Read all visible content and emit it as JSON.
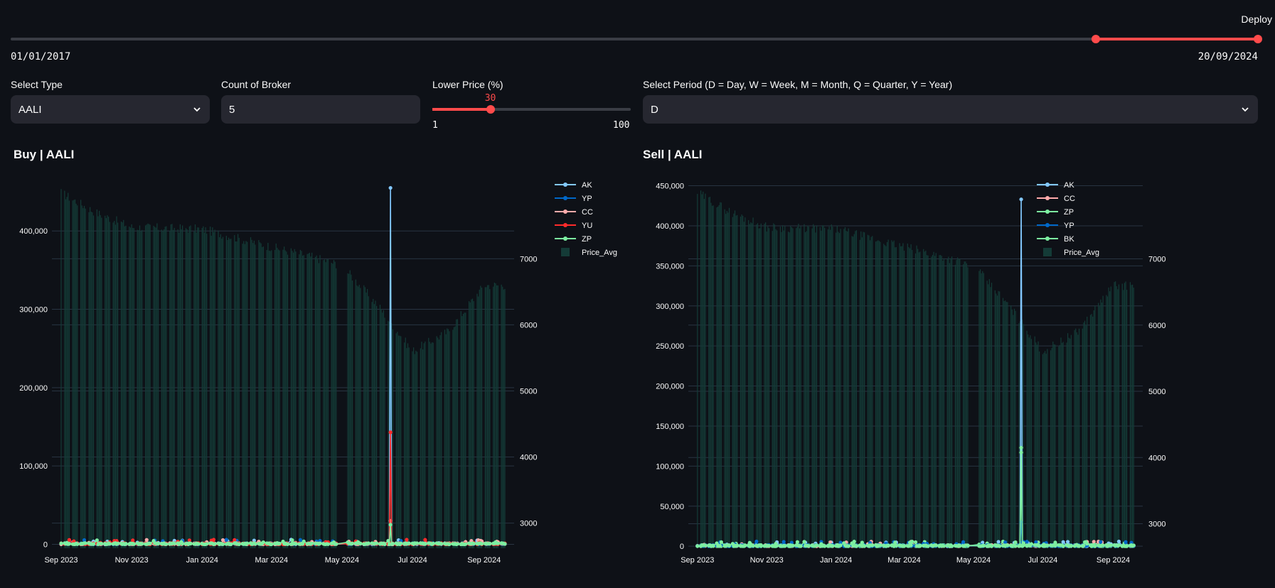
{
  "header": {
    "deploy_label": "Deploy"
  },
  "date_range": {
    "start": "01/01/2017",
    "end": "20/09/2024",
    "low_fraction": 0.87,
    "high_fraction": 1.0
  },
  "controls": {
    "type_label": "Select Type",
    "type_value": "AALI",
    "broker_label": "Count of Broker",
    "broker_value": "5",
    "lower_price_label": "Lower Price (%)",
    "lower_price_value": "30",
    "lower_price_min": "1",
    "lower_price_max": "100",
    "period_label": "Select Period (D = Day, W = Week, M = Month, Q = Quarter, Y = Year)",
    "period_value": "D"
  },
  "colors": {
    "accent": "#ff4b4b",
    "bar": "#143b37",
    "AK": "#83c9ff",
    "YP": "#0068c9",
    "CC": "#ffabab",
    "YU": "#ff2b2b",
    "ZP": "#7defa1",
    "BK": "#7defa1"
  },
  "chart_data": [
    {
      "type": "line",
      "title": "Buy | AALI",
      "x_ticks": [
        "Sep 2023",
        "Nov 2023",
        "Jan 2024",
        "Mar 2024",
        "May 2024",
        "Jul 2024",
        "Sep 2024"
      ],
      "y_ticks": [
        "0",
        "100,000",
        "200,000",
        "300,000",
        "400,000"
      ],
      "y2_ticks": [
        "3000",
        "4000",
        "5000",
        "6000",
        "7000"
      ],
      "ylim": [
        -5000,
        470000
      ],
      "y2lim": [
        2620,
        8250
      ],
      "legend": [
        "AK",
        "YP",
        "CC",
        "YU",
        "ZP",
        "Price_Avg"
      ],
      "legend_placement": "top-right",
      "series_spikes": [
        {
          "name": "AK",
          "date": "Jun 2024",
          "value": 455000
        },
        {
          "name": "YU",
          "date": "Jun 2024",
          "value": 143000
        },
        {
          "name": "CC",
          "date": "Jun 2024",
          "value": 30000
        },
        {
          "name": "ZP",
          "date": "Jun 2024",
          "value": 25000
        }
      ],
      "price_avg_trend": [
        {
          "date": "Sep 2023",
          "value": 8000
        },
        {
          "date": "Oct 2023",
          "value": 7700
        },
        {
          "date": "Nov 2023",
          "value": 7480
        },
        {
          "date": "Jan 2024",
          "value": 7450
        },
        {
          "date": "Mar 2024",
          "value": 7180
        },
        {
          "date": "Apr 2024",
          "value": 7050
        },
        {
          "date": "May 2024",
          "value": 6900
        },
        {
          "date": "Jun 2024",
          "value": 6300
        },
        {
          "date": "Jul 2024",
          "value": 5600
        },
        {
          "date": "Aug 2024",
          "value": 5900
        },
        {
          "date": "Sep 2024",
          "value": 6600
        }
      ]
    },
    {
      "type": "line",
      "title": "Sell | AALI",
      "x_ticks": [
        "Sep 2023",
        "Nov 2023",
        "Jan 2024",
        "Mar 2024",
        "May 2024",
        "Jul 2024",
        "Sep 2024"
      ],
      "y_ticks": [
        "0",
        "50,000",
        "100,000",
        "150,000",
        "200,000",
        "250,000",
        "300,000",
        "350,000",
        "400,000",
        "450,000"
      ],
      "y2_ticks": [
        "3000",
        "4000",
        "5000",
        "6000",
        "7000"
      ],
      "ylim": [
        -2500,
        462000
      ],
      "y2lim": [
        2630,
        8250
      ],
      "legend": [
        "AK",
        "CC",
        "ZP",
        "YP",
        "BK",
        "Price_Avg"
      ],
      "legend_placement": "top-right",
      "series_spikes": [
        {
          "name": "AK",
          "date": "Jun 2024",
          "value": 433000
        },
        {
          "name": "BK",
          "date": "Jun 2024",
          "value": 123000
        },
        {
          "name": "ZP",
          "date": "Jun 2024",
          "value": 117000
        },
        {
          "name": "YP",
          "date": "Jun 2024",
          "value": 30000
        }
      ],
      "price_avg_trend": [
        {
          "date": "Sep 2023",
          "value": 8000
        },
        {
          "date": "Oct 2023",
          "value": 7700
        },
        {
          "date": "Nov 2023",
          "value": 7480
        },
        {
          "date": "Jan 2024",
          "value": 7450
        },
        {
          "date": "Mar 2024",
          "value": 7180
        },
        {
          "date": "Apr 2024",
          "value": 7050
        },
        {
          "date": "May 2024",
          "value": 6900
        },
        {
          "date": "Jun 2024",
          "value": 6300
        },
        {
          "date": "Jul 2024",
          "value": 5600
        },
        {
          "date": "Aug 2024",
          "value": 5900
        },
        {
          "date": "Sep 2024",
          "value": 6600
        }
      ]
    }
  ]
}
